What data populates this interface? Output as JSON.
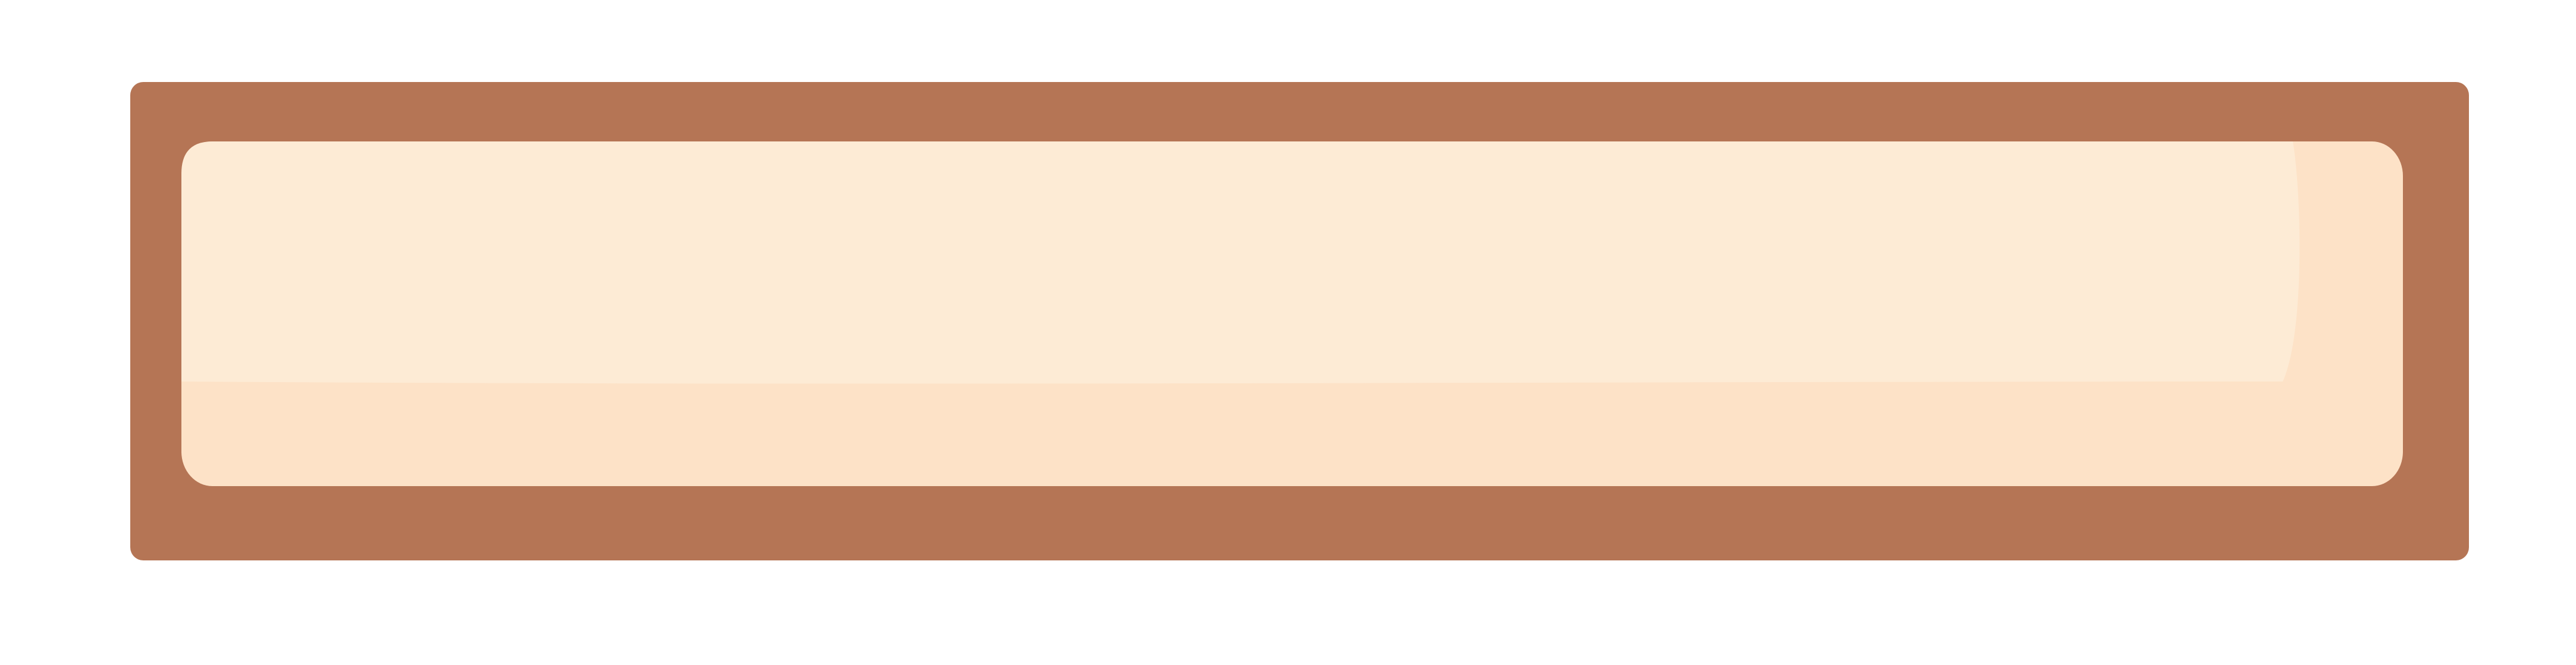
{
  "panel": {
    "text": "",
    "colors": {
      "frame": "#b57555",
      "inner_base": "#fde2c7",
      "inner_highlight": "#fdebd5"
    }
  }
}
